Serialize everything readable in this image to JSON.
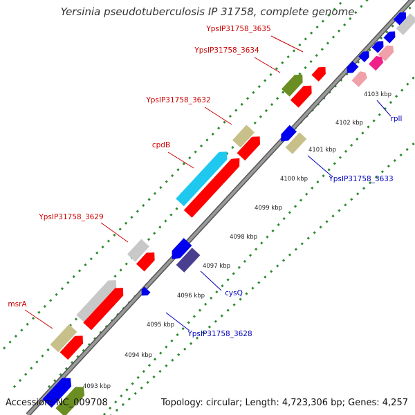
{
  "title": "Yersinia pseudotuberculosis IP 31758, complete genome",
  "footer": {
    "accession": "Accession: NC_009708",
    "summary": "Topology: circular; Length: 4,723,306 bp; Genes: 4,257"
  },
  "kbp_ticks": [
    "4093 kbp",
    "4094 kbp",
    "4095 kbp",
    "4096 kbp",
    "4097 kbp",
    "4098 kbp",
    "4099 kbp",
    "4100 kbp",
    "4101 kbp",
    "4102 kbp",
    "4103 kbp"
  ],
  "forward_gene_labels": [
    "YpsIP31758_3635",
    "YpsIP31758_3634",
    "YpsIP31758_3632",
    "cpdB",
    "YpsIP31758_3629",
    "msrA"
  ],
  "reverse_gene_labels": [
    "rplI",
    "YpsIP31758_3633",
    "cysQ",
    "YpsIP31758_3628"
  ],
  "colors": {
    "forward_label": "#cc0000",
    "reverse_label": "#0000bb",
    "red": "#ff0000",
    "grey": "#c8c8c8",
    "olive": "#6b8e23",
    "khaki": "#c8c08a",
    "cyan": "#1ec8ee",
    "blue": "#0000ee",
    "navy": "#4a3f8f",
    "pink": "#f0a0a8",
    "magenta": "#ee2288",
    "dotted_green": "#2e8b2e",
    "backbone": "#888888"
  }
}
